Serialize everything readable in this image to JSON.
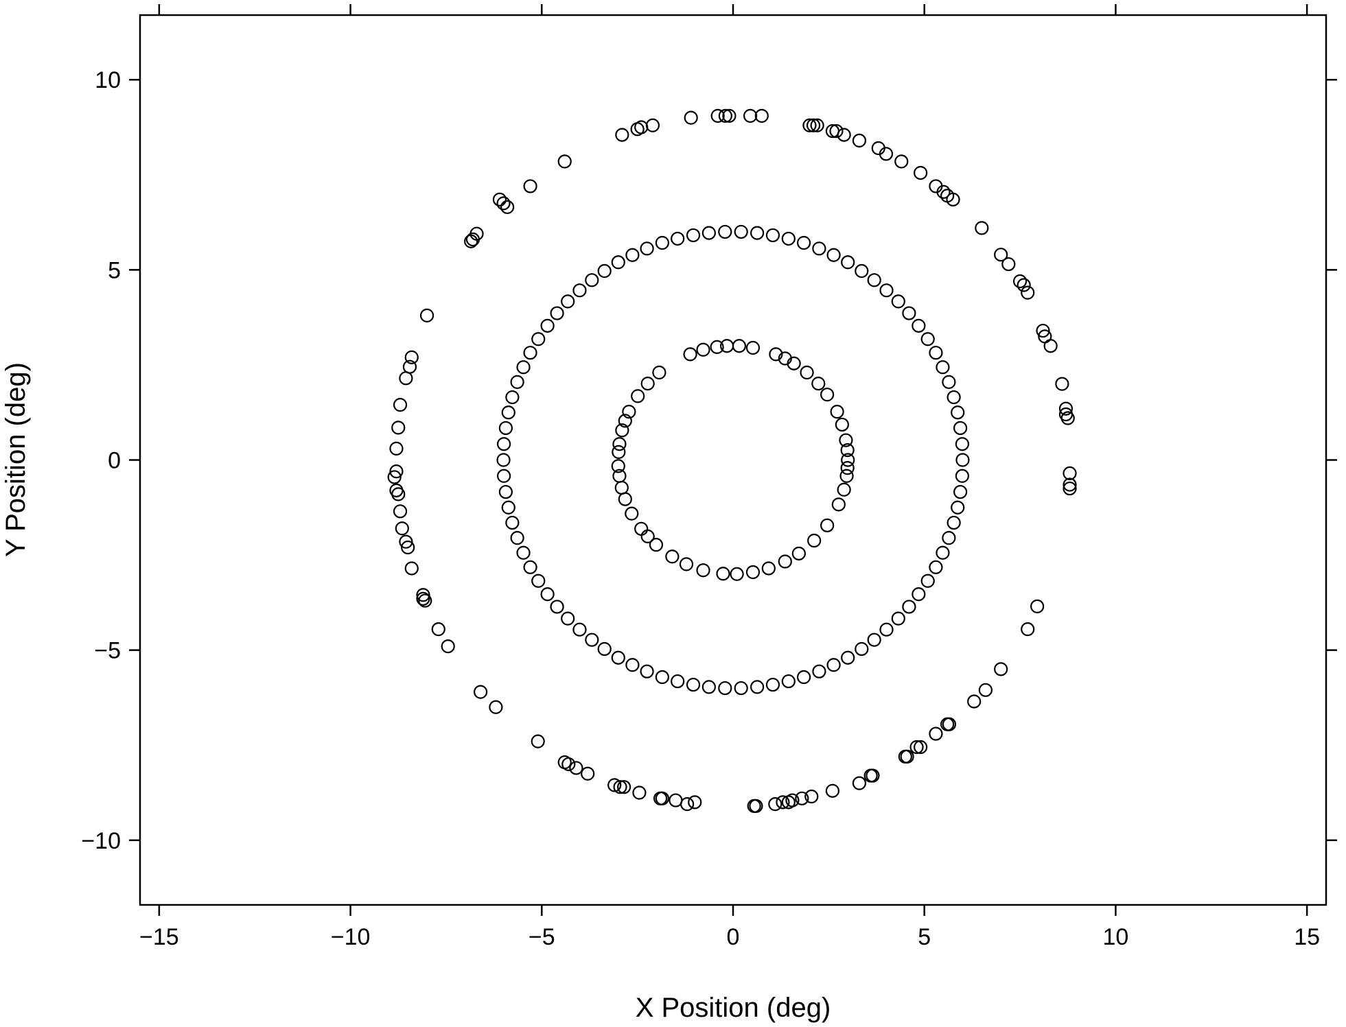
{
  "chart_data": {
    "type": "scatter",
    "x_label": "X Position (deg)",
    "y_label": "Y Position (deg)",
    "xlim": [
      -15.5,
      15.5
    ],
    "ylim": [
      -11.7,
      11.7
    ],
    "xticks": [
      {
        "value": -15,
        "label": "−15"
      },
      {
        "value": -10,
        "label": "−10"
      },
      {
        "value": -5,
        "label": "−5"
      },
      0,
      5,
      10,
      15
    ],
    "yticks": [
      {
        "value": -10,
        "label": "−10"
      },
      {
        "value": -5,
        "label": "−5"
      },
      0,
      5,
      10
    ],
    "color": "#000000",
    "x": [
      6,
      5.99,
      5.94,
      5.87,
      5.77,
      5.64,
      5.48,
      5.3,
      5.09,
      4.85,
      4.6,
      4.32,
      4.01,
      3.69,
      3.36,
      3.0,
      2.63,
      2.25,
      1.85,
      1.45,
      1.04,
      0.63,
      0.21,
      -0.21,
      -0.63,
      -1.04,
      -1.45,
      -1.85,
      -2.25,
      -2.63,
      -3.0,
      -3.36,
      -3.69,
      -4.01,
      -4.32,
      -4.6,
      -4.85,
      -5.09,
      -5.3,
      -5.48,
      -5.64,
      -5.77,
      -5.87,
      -5.94,
      -5.99,
      -6,
      -5.99,
      -5.94,
      -5.87,
      -5.77,
      -5.64,
      -5.48,
      -5.3,
      -5.09,
      -4.85,
      -4.6,
      -4.32,
      -4.01,
      -3.69,
      -3.36,
      -3.0,
      -2.63,
      -2.25,
      -1.85,
      -1.45,
      -1.04,
      -0.63,
      -0.21,
      0.21,
      0.63,
      1.04,
      1.45,
      1.85,
      2.25,
      2.63,
      3.0,
      3.36,
      3.69,
      4.01,
      4.32,
      4.6,
      4.85,
      5.09,
      5.3,
      5.48,
      5.64,
      5.77,
      5.87,
      5.94,
      5.99,
      3,
      2.99,
      2.95,
      2.85,
      2.72,
      2.46,
      2.23,
      1.93,
      1.59,
      1.36,
      1.12,
      0.52,
      0.16,
      -0.16,
      -0.42,
      -0.78,
      -1.12,
      -1.93,
      -2.23,
      -2.49,
      -2.72,
      -2.82,
      -2.9,
      -2.97,
      -2.99,
      -3.0,
      -2.97,
      -2.91,
      -2.82,
      -2.65,
      -2.4,
      -2.23,
      -2.01,
      -1.59,
      -1.22,
      -0.78,
      -0.26,
      0.1,
      0.52,
      0.93,
      1.36,
      1.72,
      2.12,
      2.46,
      2.76,
      2.9,
      2.97,
      2.99,
      -1.1,
      -0.4,
      -0.2,
      -0.1,
      0.45,
      0.75,
      -2.9,
      -2.5,
      -2.4,
      -2.1,
      2.0,
      2.1,
      2.2,
      2.6,
      2.7,
      2.9,
      3.3,
      3.8,
      4.0,
      4.4,
      4.9,
      5.3,
      5.5,
      5.6,
      5.75,
      6.5,
      7.0,
      7.2,
      7.5,
      7.6,
      7.7,
      8.1,
      8.15,
      8.3,
      8.6,
      8.7,
      8.7,
      8.75,
      8.8,
      8.8,
      8.8,
      -4.4,
      -5.3,
      -5.9,
      -6.0,
      -6.1,
      -6.7,
      -6.8,
      -6.85,
      -8.0,
      -8.4,
      -8.45,
      -8.55,
      -8.7,
      -8.75,
      -8.8,
      -8.8,
      -8.85,
      -8.8,
      -8.75,
      -8.7,
      -8.65,
      -8.55,
      -8.5,
      -8.4,
      -8.1,
      -8.05,
      -8.1,
      -7.7,
      -7.45,
      -6.6,
      -6.2,
      -5.1,
      -4.4,
      -4.3,
      -4.1,
      -3.8,
      -3.1,
      -2.95,
      -2.85,
      -2.45,
      -1.9,
      -1.85,
      -1.5,
      -1.2,
      -1.0,
      0.55,
      0.6,
      1.1,
      1.3,
      1.45,
      1.55,
      1.8,
      2.05,
      2.6,
      3.3,
      3.6,
      3.65,
      4.5,
      4.55,
      4.8,
      4.9,
      5.3,
      5.6,
      5.65,
      6.3,
      6.6,
      7.0,
      7.7,
      7.95
    ],
    "values": [
      0,
      0.42,
      0.84,
      1.25,
      1.65,
      2.05,
      2.44,
      2.82,
      3.18,
      3.53,
      3.86,
      4.17,
      4.46,
      4.73,
      4.97,
      5.2,
      5.39,
      5.56,
      5.71,
      5.82,
      5.91,
      5.97,
      6.0,
      6.0,
      5.97,
      5.91,
      5.82,
      5.71,
      5.56,
      5.39,
      5.2,
      4.97,
      4.73,
      4.46,
      4.17,
      3.86,
      3.53,
      3.18,
      2.82,
      2.44,
      2.05,
      1.65,
      1.25,
      0.84,
      0.42,
      0,
      -0.42,
      -0.84,
      -1.25,
      -1.65,
      -2.05,
      -2.44,
      -2.82,
      -3.18,
      -3.53,
      -3.86,
      -4.17,
      -4.46,
      -4.73,
      -4.97,
      -5.2,
      -5.39,
      -5.56,
      -5.71,
      -5.82,
      -5.91,
      -5.97,
      -6.0,
      -6.0,
      -5.97,
      -5.91,
      -5.82,
      -5.71,
      -5.56,
      -5.39,
      -5.2,
      -4.97,
      -4.73,
      -4.46,
      -4.17,
      -3.86,
      -3.53,
      -3.18,
      -2.82,
      -2.44,
      -2.05,
      -1.65,
      -1.25,
      -0.84,
      -0.42,
      0,
      0.26,
      0.52,
      0.93,
      1.27,
      1.72,
      2.01,
      2.3,
      2.54,
      2.67,
      2.78,
      2.95,
      3.0,
      3.0,
      2.97,
      2.9,
      2.78,
      2.3,
      2.01,
      1.68,
      1.27,
      1.03,
      0.78,
      0.42,
      0.21,
      -0.16,
      -0.42,
      -0.73,
      -1.03,
      -1.41,
      -1.81,
      -2.01,
      -2.23,
      -2.54,
      -2.74,
      -2.9,
      -2.99,
      -3.0,
      -2.95,
      -2.85,
      -2.67,
      -2.46,
      -2.12,
      -1.72,
      -1.17,
      -0.78,
      -0.42,
      -0.21,
      9.0,
      9.05,
      9.05,
      9.05,
      9.05,
      9.05,
      8.55,
      8.7,
      8.75,
      8.8,
      8.8,
      8.8,
      8.8,
      8.65,
      8.65,
      8.55,
      8.4,
      8.2,
      8.05,
      7.85,
      7.55,
      7.2,
      7.05,
      6.95,
      6.85,
      6.1,
      5.4,
      5.15,
      4.7,
      4.6,
      4.4,
      3.4,
      3.25,
      3.0,
      2.0,
      1.35,
      1.2,
      1.1,
      -0.35,
      -0.65,
      -0.75,
      7.85,
      7.2,
      6.65,
      6.75,
      6.85,
      5.95,
      5.8,
      5.75,
      3.8,
      2.7,
      2.45,
      2.15,
      1.45,
      0.85,
      0.3,
      -0.3,
      -0.45,
      -0.8,
      -0.9,
      -1.35,
      -1.8,
      -2.15,
      -2.3,
      -2.85,
      -3.55,
      -3.7,
      -3.65,
      -4.45,
      -4.9,
      -6.1,
      -6.5,
      -7.4,
      -7.95,
      -8.0,
      -8.1,
      -8.25,
      -8.55,
      -8.6,
      -8.6,
      -8.75,
      -8.9,
      -8.9,
      -8.95,
      -9.05,
      -9.0,
      -9.1,
      -9.1,
      -9.05,
      -9.0,
      -9.0,
      -8.95,
      -8.9,
      -8.85,
      -8.7,
      -8.5,
      -8.3,
      -8.3,
      -7.8,
      -7.8,
      -7.55,
      -7.55,
      -7.2,
      -6.95,
      -6.95,
      -6.35,
      -6.05,
      -5.5,
      -4.45,
      -3.85
    ]
  }
}
